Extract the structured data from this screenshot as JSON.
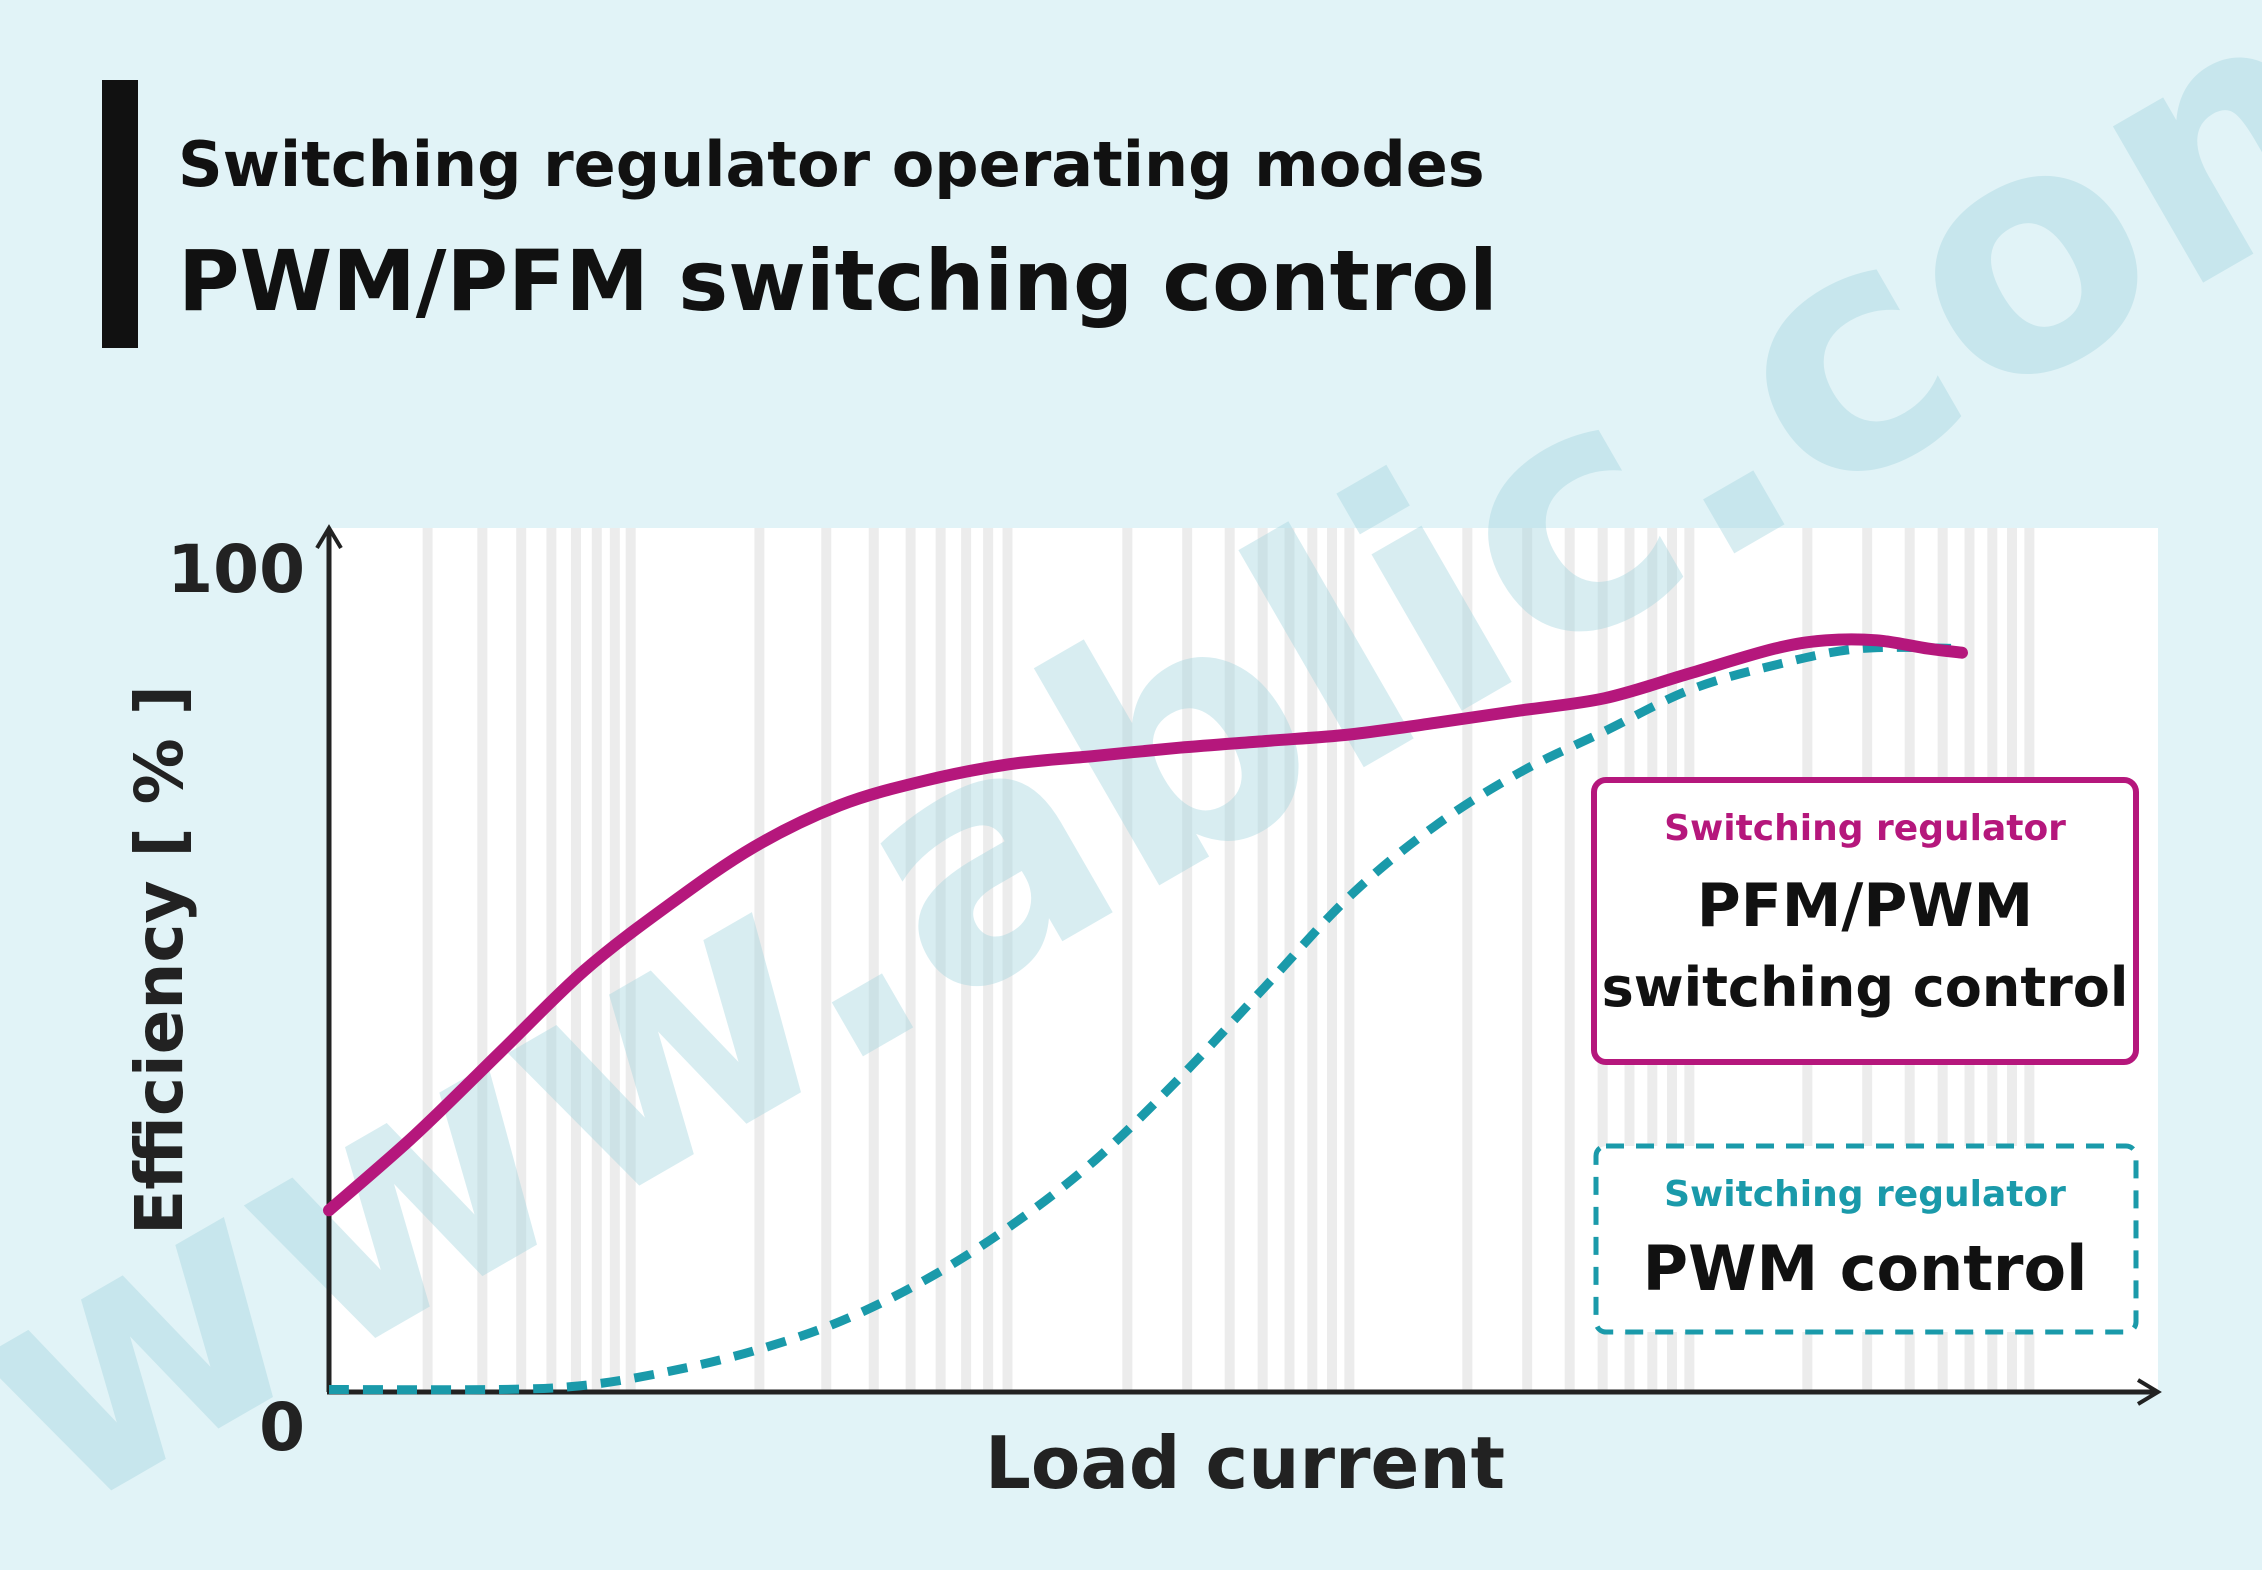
{
  "header": {
    "subtitle": "Switching regulator operating modes",
    "title": "PWM/PFM switching control"
  },
  "watermark": "www.ablic.com",
  "chart_data": {
    "type": "line",
    "xlabel": "Load current",
    "ylabel": "Efficiency [ % ]",
    "ylim": [
      0,
      100
    ],
    "xlim": [
      0,
      100
    ],
    "y_ticks": [
      "0",
      "100"
    ],
    "grid": "vertical decorative stripes",
    "series": [
      {
        "key": "pfm_pwm",
        "style": "solid",
        "color": "#b5177c",
        "x": [
          0,
          5,
          10,
          15,
          20,
          25,
          30,
          35,
          40,
          45,
          50,
          55,
          60,
          65,
          70,
          75,
          80,
          85,
          88,
          91,
          94,
          96
        ],
        "y": [
          22,
          31,
          41,
          51,
          59,
          66,
          71,
          74,
          76,
          77,
          78,
          78.8,
          79.6,
          81,
          82.5,
          84,
          87,
          90,
          91,
          91,
          90,
          89.5
        ]
      },
      {
        "key": "pwm",
        "style": "dashed",
        "color": "#1a9aaa",
        "x": [
          0,
          10,
          15,
          20,
          25,
          30,
          35,
          40,
          45,
          50,
          55,
          60,
          65,
          70,
          75,
          80,
          85,
          90,
          96
        ],
        "y": [
          0.3,
          0.3,
          0.8,
          2.5,
          5,
          8.5,
          13.5,
          20,
          28,
          38,
          49,
          60,
          68.5,
          75,
          80,
          85,
          88,
          90,
          90
        ]
      }
    ],
    "legend": [
      {
        "key": "pfm_pwm",
        "category": "Switching regulator",
        "name_line1": "PFM/PWM",
        "name_line2": "switching control",
        "color": "#b5177c",
        "border": "solid"
      },
      {
        "key": "pwm",
        "category": "Switching regulator",
        "name_line1": "PWM control",
        "color": "#1a9aaa",
        "border": "dashed"
      }
    ],
    "legend_placement": "right"
  }
}
